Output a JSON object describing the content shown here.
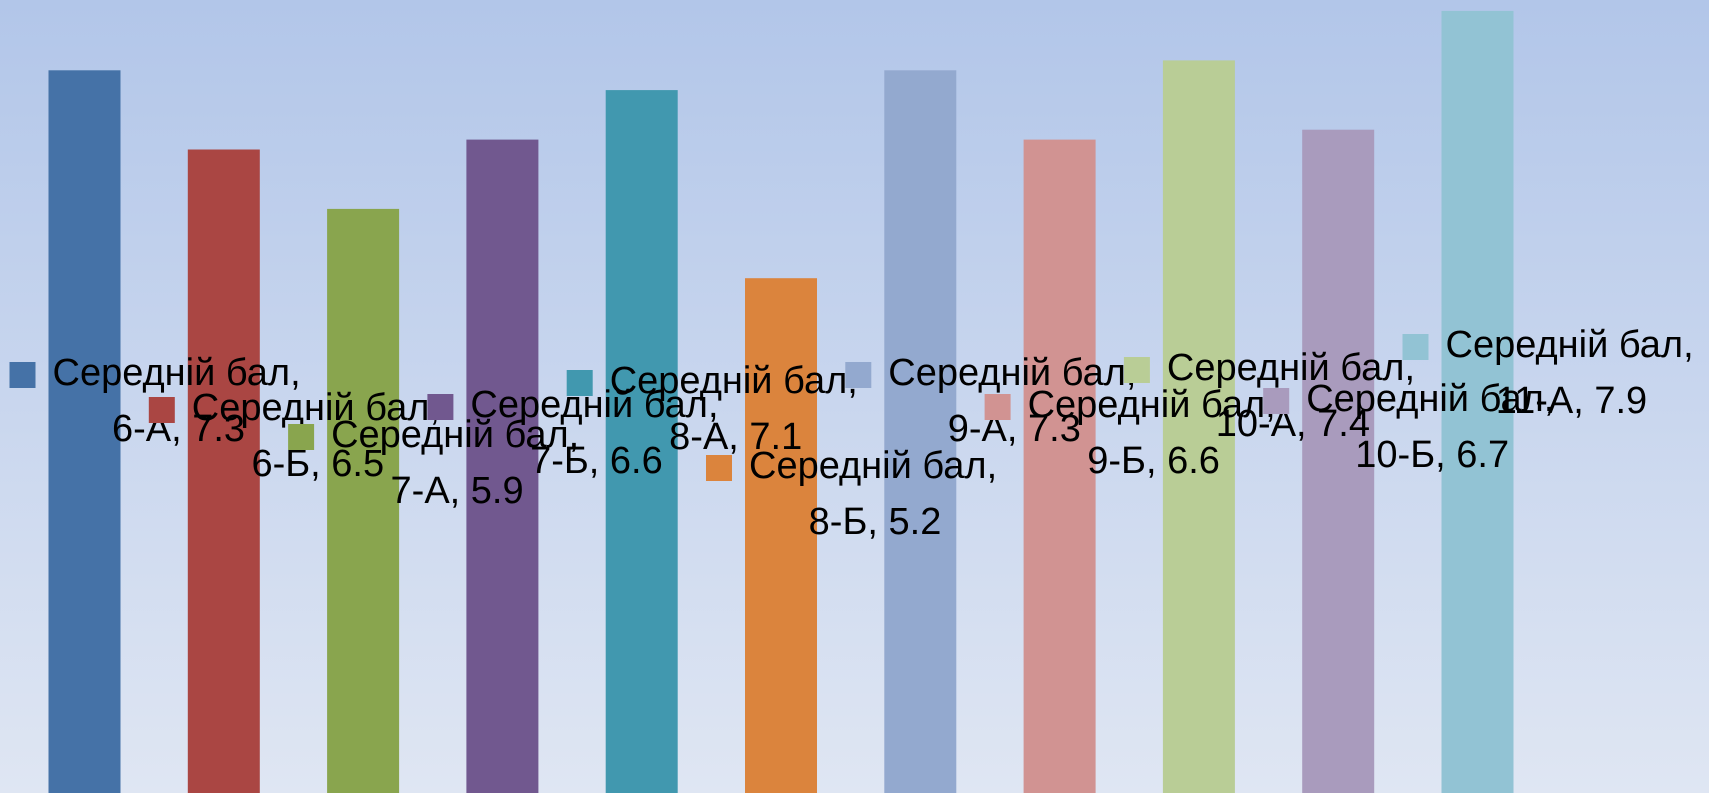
{
  "chart_data": {
    "type": "bar",
    "series_name": "Середній бал",
    "categories": [
      "6-А",
      "6-Б",
      "7-А",
      "7-Б",
      "8-А",
      "8-Б",
      "9-А",
      "9-Б",
      "10-А",
      "10-Б",
      "11-А"
    ],
    "values": [
      7.3,
      6.5,
      5.9,
      6.6,
      7.1,
      5.2,
      7.3,
      6.6,
      7.4,
      6.7,
      7.9
    ],
    "value_labels": [
      "Середній бал, 6-А, 7.3",
      "Середній бал, 6-Б, 6.5",
      "Середній бал, 7-А, 5.9",
      "Середній бал, 7-Б, 6.6",
      "Середній бал, 8-А, 7.1",
      "Середній бал, 8-Б, 5.2",
      "Середній бал, 9-А, 7.3",
      "Середній бал, 9-Б, 6.6",
      "Середній бал, 10-А, 7.4",
      "Середній бал, 10-Б, 6.7",
      "Середній бал, 11-А, 7.9"
    ],
    "colors": [
      "#4572a7",
      "#aa4643",
      "#89a54e",
      "#71588f",
      "#4198af",
      "#db843d",
      "#93a9cf",
      "#d19392",
      "#b9cd96",
      "#a99bbd",
      "#92c3d4"
    ],
    "ylim": [
      0,
      8
    ]
  }
}
